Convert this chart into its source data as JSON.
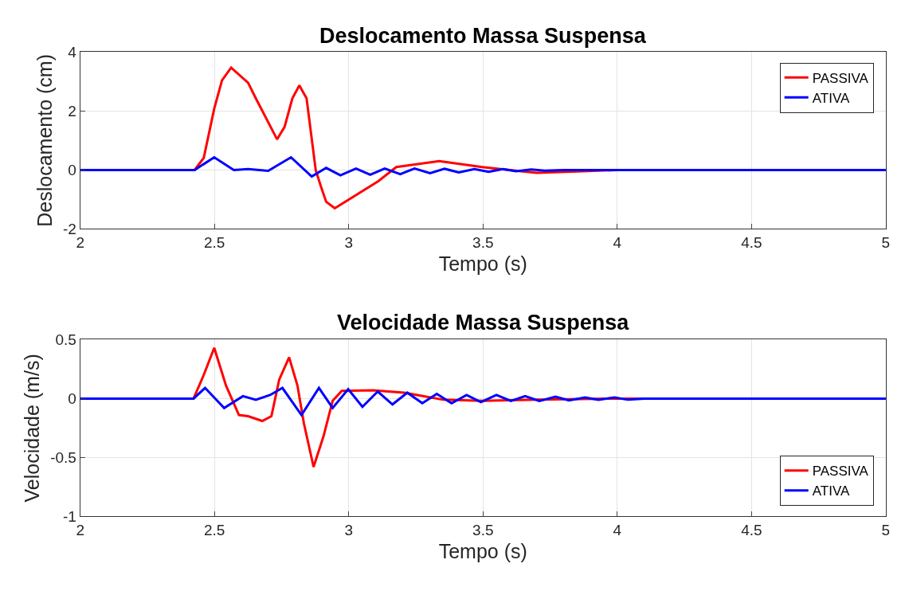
{
  "chart_data": [
    {
      "type": "line",
      "title": "Deslocamento Massa Suspensa",
      "xlabel": "Tempo (s)",
      "ylabel": "Deslocamento (cm)",
      "xlim": [
        2,
        5
      ],
      "xticks": [
        2,
        2.5,
        3,
        3.5,
        4,
        4.5,
        5
      ],
      "ylim": [
        -2,
        4
      ],
      "yticks": [
        -2,
        0,
        2,
        4
      ],
      "grid": true,
      "legend": "top right",
      "series": [
        {
          "name": "PASSIVA",
          "color": "#ff0000",
          "x": [
            2,
            2.426,
            2.46,
            2.499,
            2.528,
            2.562,
            2.625,
            2.654,
            2.733,
            2.761,
            2.79,
            2.816,
            2.843,
            2.877,
            2.896,
            2.916,
            2.948,
            3.11,
            3.177,
            3.337,
            3.497,
            3.6,
            3.7,
            3.85,
            4,
            5
          ],
          "values": [
            0,
            0,
            0.41,
            2.08,
            3.04,
            3.47,
            2.96,
            2.43,
            1.04,
            1.46,
            2.43,
            2.87,
            2.43,
            0,
            -0.55,
            -1.08,
            -1.3,
            -0.38,
            0.1,
            0.3,
            0.1,
            0,
            -0.1,
            -0.05,
            0,
            0
          ]
        },
        {
          "name": "ATIVA",
          "color": "#0000ff",
          "x": [
            2,
            2.426,
            2.499,
            2.572,
            2.625,
            2.7,
            2.785,
            2.862,
            2.916,
            2.969,
            3.027,
            3.08,
            3.134,
            3.192,
            3.245,
            3.303,
            3.357,
            3.41,
            3.468,
            3.521,
            3.574,
            3.623,
            3.68,
            3.73,
            3.8,
            5
          ],
          "values": [
            0,
            0,
            0.43,
            0,
            0.03,
            -0.03,
            0.43,
            -0.22,
            0.07,
            -0.18,
            0.05,
            -0.16,
            0.05,
            -0.14,
            0.05,
            -0.11,
            0.04,
            -0.08,
            0.03,
            -0.06,
            0.03,
            -0.04,
            0.02,
            -0.02,
            0,
            0
          ]
        }
      ]
    },
    {
      "type": "line",
      "title": "Velocidade Massa Suspensa",
      "xlabel": "Tempo (s)",
      "ylabel": "Velocidade (m/s)",
      "xlim": [
        2,
        5
      ],
      "xticks": [
        2,
        2.5,
        3,
        3.5,
        4,
        4.5,
        5
      ],
      "ylim": [
        -1,
        0.5
      ],
      "yticks": [
        -1,
        -0.5,
        0,
        0.5
      ],
      "grid": true,
      "legend": "bottom right",
      "series": [
        {
          "name": "PASSIVA",
          "color": "#ff0000",
          "x": [
            2,
            2.422,
            2.46,
            2.499,
            2.543,
            2.591,
            2.625,
            2.678,
            2.712,
            2.741,
            2.778,
            2.809,
            2.833,
            2.869,
            2.906,
            2.94,
            2.974,
            3.09,
            3.206,
            3.352,
            3.497,
            3.7,
            4,
            5
          ],
          "values": [
            0,
            0,
            0.2,
            0.43,
            0.11,
            -0.14,
            -0.15,
            -0.19,
            -0.15,
            0.16,
            0.35,
            0.11,
            -0.21,
            -0.58,
            -0.32,
            -0.02,
            0.065,
            0.07,
            0.05,
            -0.01,
            -0.02,
            -0.01,
            0,
            0
          ]
        },
        {
          "name": "ATIVA",
          "color": "#0000ff",
          "x": [
            2,
            2.422,
            2.465,
            2.536,
            2.606,
            2.654,
            2.707,
            2.753,
            2.824,
            2.889,
            2.94,
            2.998,
            3.051,
            3.108,
            3.163,
            3.218,
            3.274,
            3.328,
            3.383,
            3.439,
            3.492,
            3.55,
            3.604,
            3.657,
            3.71,
            3.77,
            3.82,
            3.88,
            3.93,
            3.99,
            4.04,
            4.1,
            5
          ],
          "values": [
            0,
            0,
            0.09,
            -0.08,
            0.02,
            -0.01,
            0.03,
            0.09,
            -0.14,
            0.09,
            -0.08,
            0.08,
            -0.07,
            0.06,
            -0.05,
            0.05,
            -0.04,
            0.04,
            -0.04,
            0.03,
            -0.03,
            0.03,
            -0.02,
            0.02,
            -0.02,
            0.015,
            -0.015,
            0.01,
            -0.01,
            0.01,
            -0.01,
            0,
            0
          ]
        }
      ]
    }
  ]
}
